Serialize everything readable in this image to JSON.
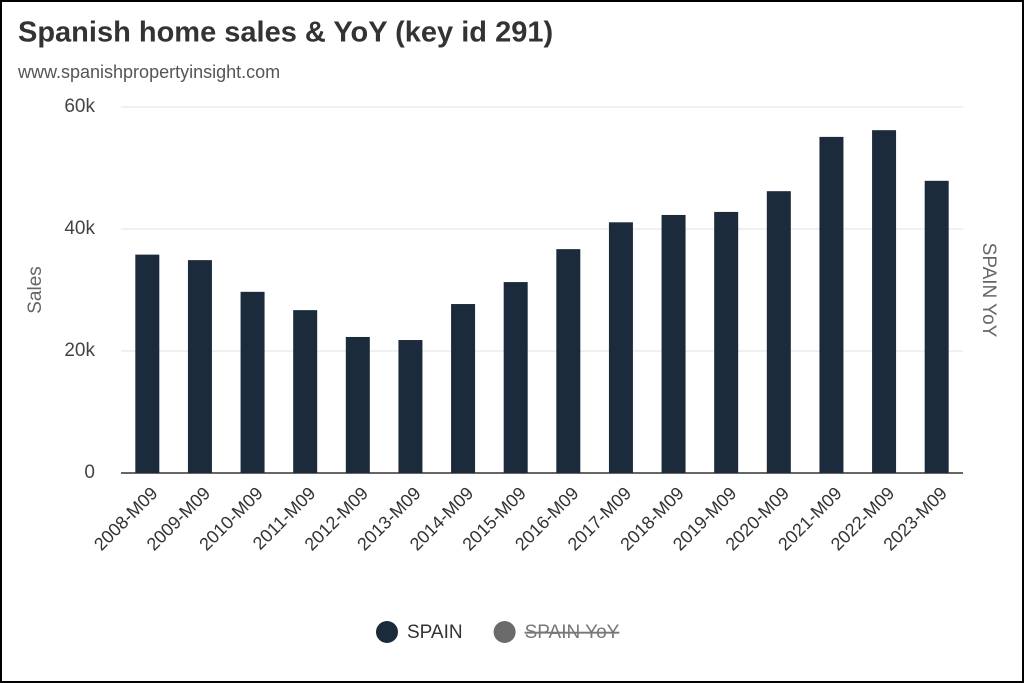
{
  "chart_data": {
    "type": "bar",
    "title": "Spanish home sales & YoY (key id 291)",
    "subtitle": "www.spanishpropertyinsight.com",
    "y_label": "Sales",
    "y2_label": "SPAIN YoY",
    "categories": [
      "2008-M09",
      "2009-M09",
      "2010-M09",
      "2011-M09",
      "2012-M09",
      "2013-M09",
      "2014-M09",
      "2015-M09",
      "2016-M09",
      "2017-M09",
      "2018-M09",
      "2019-M09",
      "2020-M09",
      "2021-M09",
      "2022-M09",
      "2023-M09"
    ],
    "series": [
      {
        "name": "SPAIN",
        "color": "#1c2b3c",
        "values": [
          35800,
          34900,
          29700,
          26700,
          22300,
          21800,
          27700,
          31300,
          36700,
          41100,
          42300,
          42800,
          46200,
          55100,
          56200,
          47900
        ]
      }
    ],
    "legend": [
      {
        "name": "SPAIN",
        "color": "#1c2b3c",
        "hidden": false
      },
      {
        "name": "SPAIN YoY",
        "color": "#6b6b6b",
        "hidden": true
      }
    ],
    "ylim": [
      0,
      60000
    ],
    "yticks": [
      0,
      {
        "value": 20000,
        "label": "20k"
      },
      {
        "value": 40000,
        "label": "40k"
      },
      {
        "value": 60000,
        "label": "60k"
      }
    ],
    "grid": true
  }
}
